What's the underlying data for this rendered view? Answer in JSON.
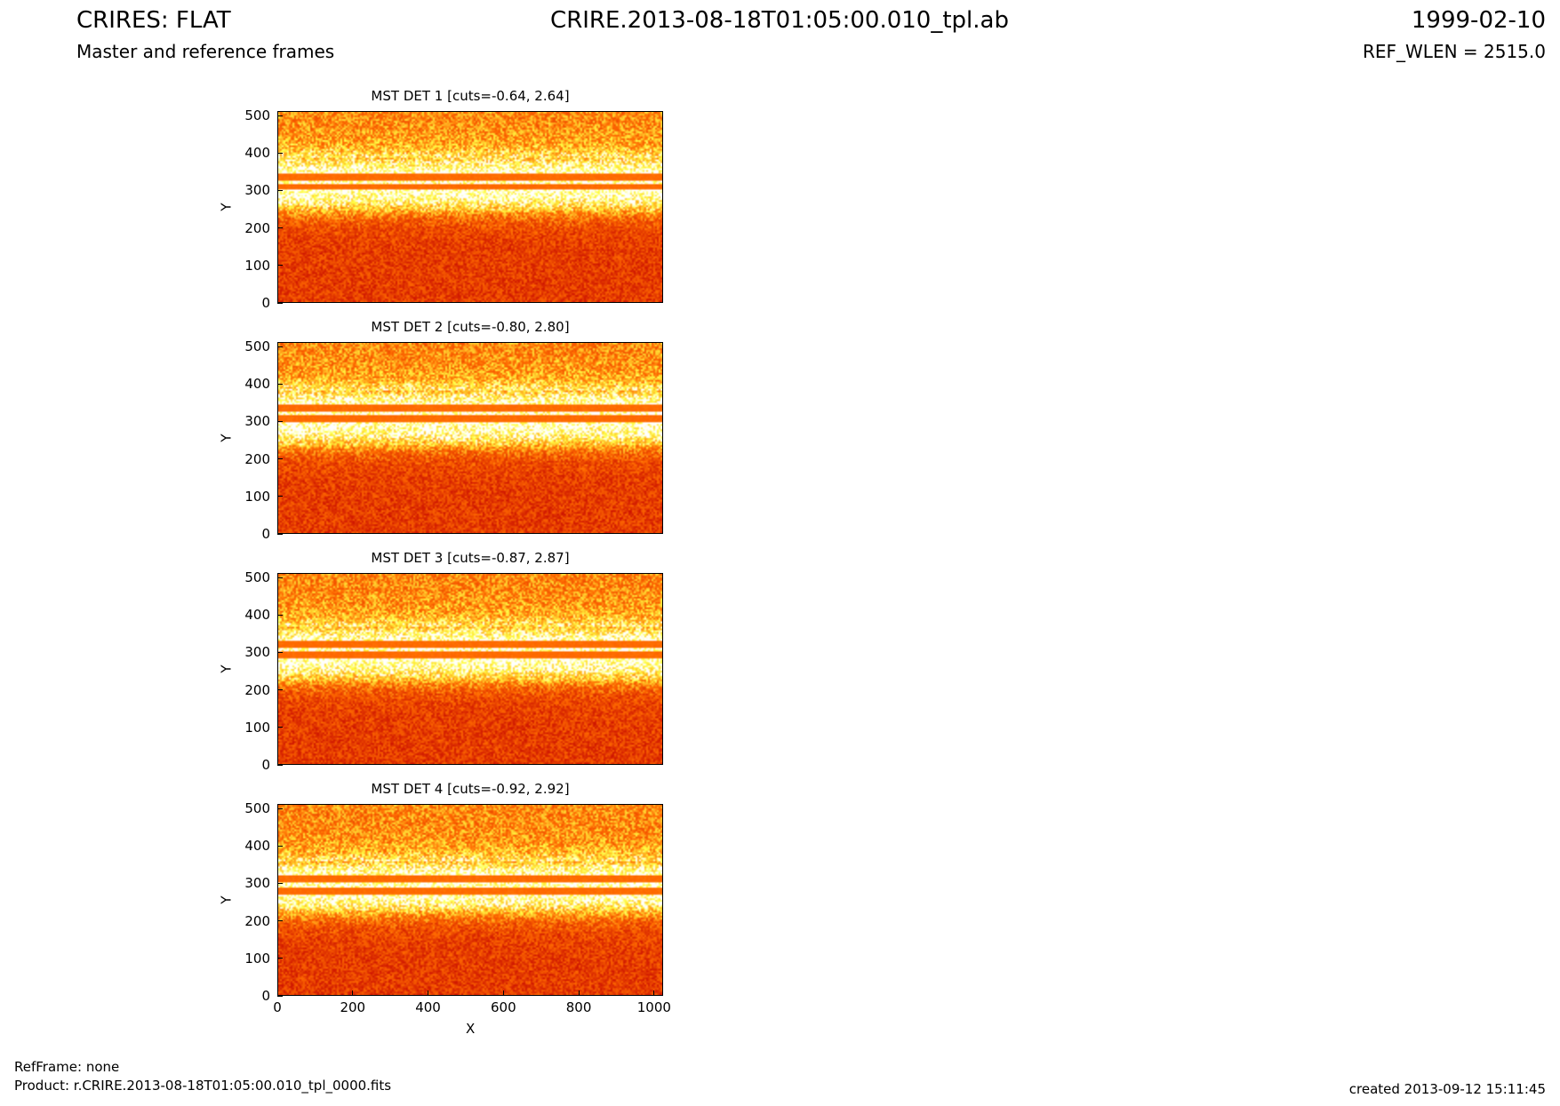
{
  "header": {
    "left_title": "CRIRES: FLAT",
    "left_subtitle": "Master and reference frames",
    "center_title": "CRIRE.2013-08-18T01:05:00.010_tpl.ab",
    "right_title": "1999-02-10",
    "right_subtitle": "REF_WLEN = 2515.0"
  },
  "footer": {
    "refframe": "RefFrame: none",
    "product": "Product: r.CRIRE.2013-08-18T01:05:00.010_tpl_0000.fits",
    "created": "created 2013-09-12 15:11:45"
  },
  "chart_data": [
    {
      "type": "heatmap",
      "title": "MST DET 1 [cuts=-0.64, 2.64]",
      "ylabel": "Y",
      "xlabel": "",
      "xlim": [
        0,
        1024
      ],
      "ylim": [
        0,
        512
      ],
      "yticks": [
        0,
        100,
        200,
        300,
        400,
        500
      ],
      "xticks": [],
      "cuts": [
        -0.64,
        2.64
      ],
      "features": {
        "bright_band": [
          250,
          390
        ],
        "dark_stripes": [
          [
            302,
            318
          ],
          [
            326,
            344
          ]
        ]
      }
    },
    {
      "type": "heatmap",
      "title": "MST DET 2 [cuts=-0.80, 2.80]",
      "ylabel": "Y",
      "xlabel": "",
      "xlim": [
        0,
        1024
      ],
      "ylim": [
        0,
        512
      ],
      "yticks": [
        0,
        100,
        200,
        300,
        400,
        500
      ],
      "xticks": [],
      "cuts": [
        -0.8,
        2.8
      ],
      "features": {
        "bright_band": [
          240,
          385
        ],
        "dark_stripes": [
          [
            300,
            318
          ],
          [
            326,
            344
          ]
        ]
      }
    },
    {
      "type": "heatmap",
      "title": "MST DET 3 [cuts=-0.87, 2.87]",
      "ylabel": "Y",
      "xlabel": "",
      "xlim": [
        0,
        1024
      ],
      "ylim": [
        0,
        512
      ],
      "yticks": [
        0,
        100,
        200,
        300,
        400,
        500
      ],
      "xticks": [],
      "cuts": [
        -0.87,
        2.87
      ],
      "features": {
        "bright_band": [
          230,
          370
        ],
        "dark_stripes": [
          [
            285,
            303
          ],
          [
            315,
            330
          ]
        ]
      }
    },
    {
      "type": "heatmap",
      "title": "MST DET 4 [cuts=-0.92, 2.92]",
      "ylabel": "Y",
      "xlabel": "X",
      "xlim": [
        0,
        1024
      ],
      "ylim": [
        0,
        512
      ],
      "yticks": [
        0,
        100,
        200,
        300,
        400,
        500
      ],
      "xticks": [
        0,
        200,
        400,
        600,
        800,
        1000
      ],
      "cuts": [
        -0.92,
        2.92
      ],
      "features": {
        "bright_band": [
          225,
          360
        ],
        "dark_stripes": [
          [
            270,
            290
          ],
          [
            305,
            322
          ]
        ]
      }
    }
  ],
  "colors": {
    "low": "#cc1100",
    "mid": "#ff6a00",
    "high": "#ffff44",
    "sat": "#ffffff"
  }
}
